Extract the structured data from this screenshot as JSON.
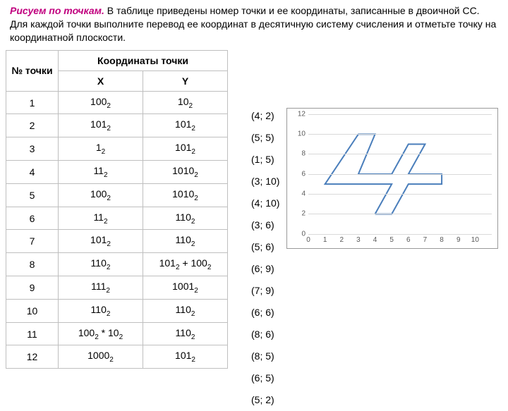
{
  "header": {
    "title_lead": "Рисуем по точкам.",
    "text": " В таблице приведены номер точки и ее координаты, записанные в двоичной СС. Для каждой точки выполните перевод ее координат в десятичную систему счисления и отметьте точку на координатной плоскости."
  },
  "table": {
    "col_num": "№ точки",
    "col_coord": "Координаты точки",
    "col_x": "X",
    "col_y": "Y",
    "rows": [
      {
        "n": "1",
        "x": "100",
        "xs": "2",
        "y": "10",
        "ys": "2"
      },
      {
        "n": "2",
        "x": "101",
        "xs": "2",
        "y": "101",
        "ys": "2"
      },
      {
        "n": "3",
        "x": "1",
        "xs": "2",
        "y": "101",
        "ys": "2"
      },
      {
        "n": "4",
        "x": "11",
        "xs": "2",
        "y": "1010",
        "ys": "2"
      },
      {
        "n": "5",
        "x": "100",
        "xs": "2",
        "y": "1010",
        "ys": "2"
      },
      {
        "n": "6",
        "x": "11",
        "xs": "2",
        "y": "110",
        "ys": "2"
      },
      {
        "n": "7",
        "x": "101",
        "xs": "2",
        "y": "110",
        "ys": "2"
      },
      {
        "n": "8",
        "x": "110",
        "xs": "2",
        "y_expr": "101₂ + 100₂"
      },
      {
        "n": "9",
        "x": "111",
        "xs": "2",
        "y": "1001",
        "ys": "2"
      },
      {
        "n": "10",
        "x": "110",
        "xs": "2",
        "y": "110",
        "ys": "2"
      },
      {
        "n": "11",
        "x_expr": "100₂ * 10₂",
        "y": "110",
        "ys": "2"
      },
      {
        "n": "12",
        "x": "1000",
        "xs": "2",
        "y": "101",
        "ys": "2"
      }
    ]
  },
  "pairs": [
    "(4; 2)",
    "(5; 5)",
    "(1; 5)",
    "(3; 10)",
    "(4; 10)",
    "(3; 6)",
    "(5; 6)",
    "(6; 9)",
    "(7; 9)",
    "(6; 6)",
    "(8; 6)",
    "(8; 5)",
    "(6; 5)",
    "(5; 2)"
  ],
  "chart": {
    "ylim": [
      0,
      12
    ],
    "xlim": [
      0,
      11
    ],
    "yticks": [
      0,
      2,
      4,
      6,
      8,
      10,
      12
    ],
    "xticks": [
      0,
      1,
      2,
      3,
      4,
      5,
      6,
      7,
      8,
      9,
      10
    ],
    "grid_color": "#d9d9d9",
    "line_color": "#4a7ebb",
    "line_width": 2,
    "background": "#ffffff",
    "tick_fontsize": 10,
    "tick_color": "#595959",
    "points": [
      [
        4,
        2
      ],
      [
        5,
        5
      ],
      [
        1,
        5
      ],
      [
        3,
        10
      ],
      [
        4,
        10
      ],
      [
        3,
        6
      ],
      [
        5,
        6
      ],
      [
        6,
        9
      ],
      [
        7,
        9
      ],
      [
        6,
        6
      ],
      [
        8,
        6
      ],
      [
        8,
        5
      ],
      [
        6,
        5
      ],
      [
        5,
        2
      ],
      [
        4,
        2
      ]
    ]
  }
}
